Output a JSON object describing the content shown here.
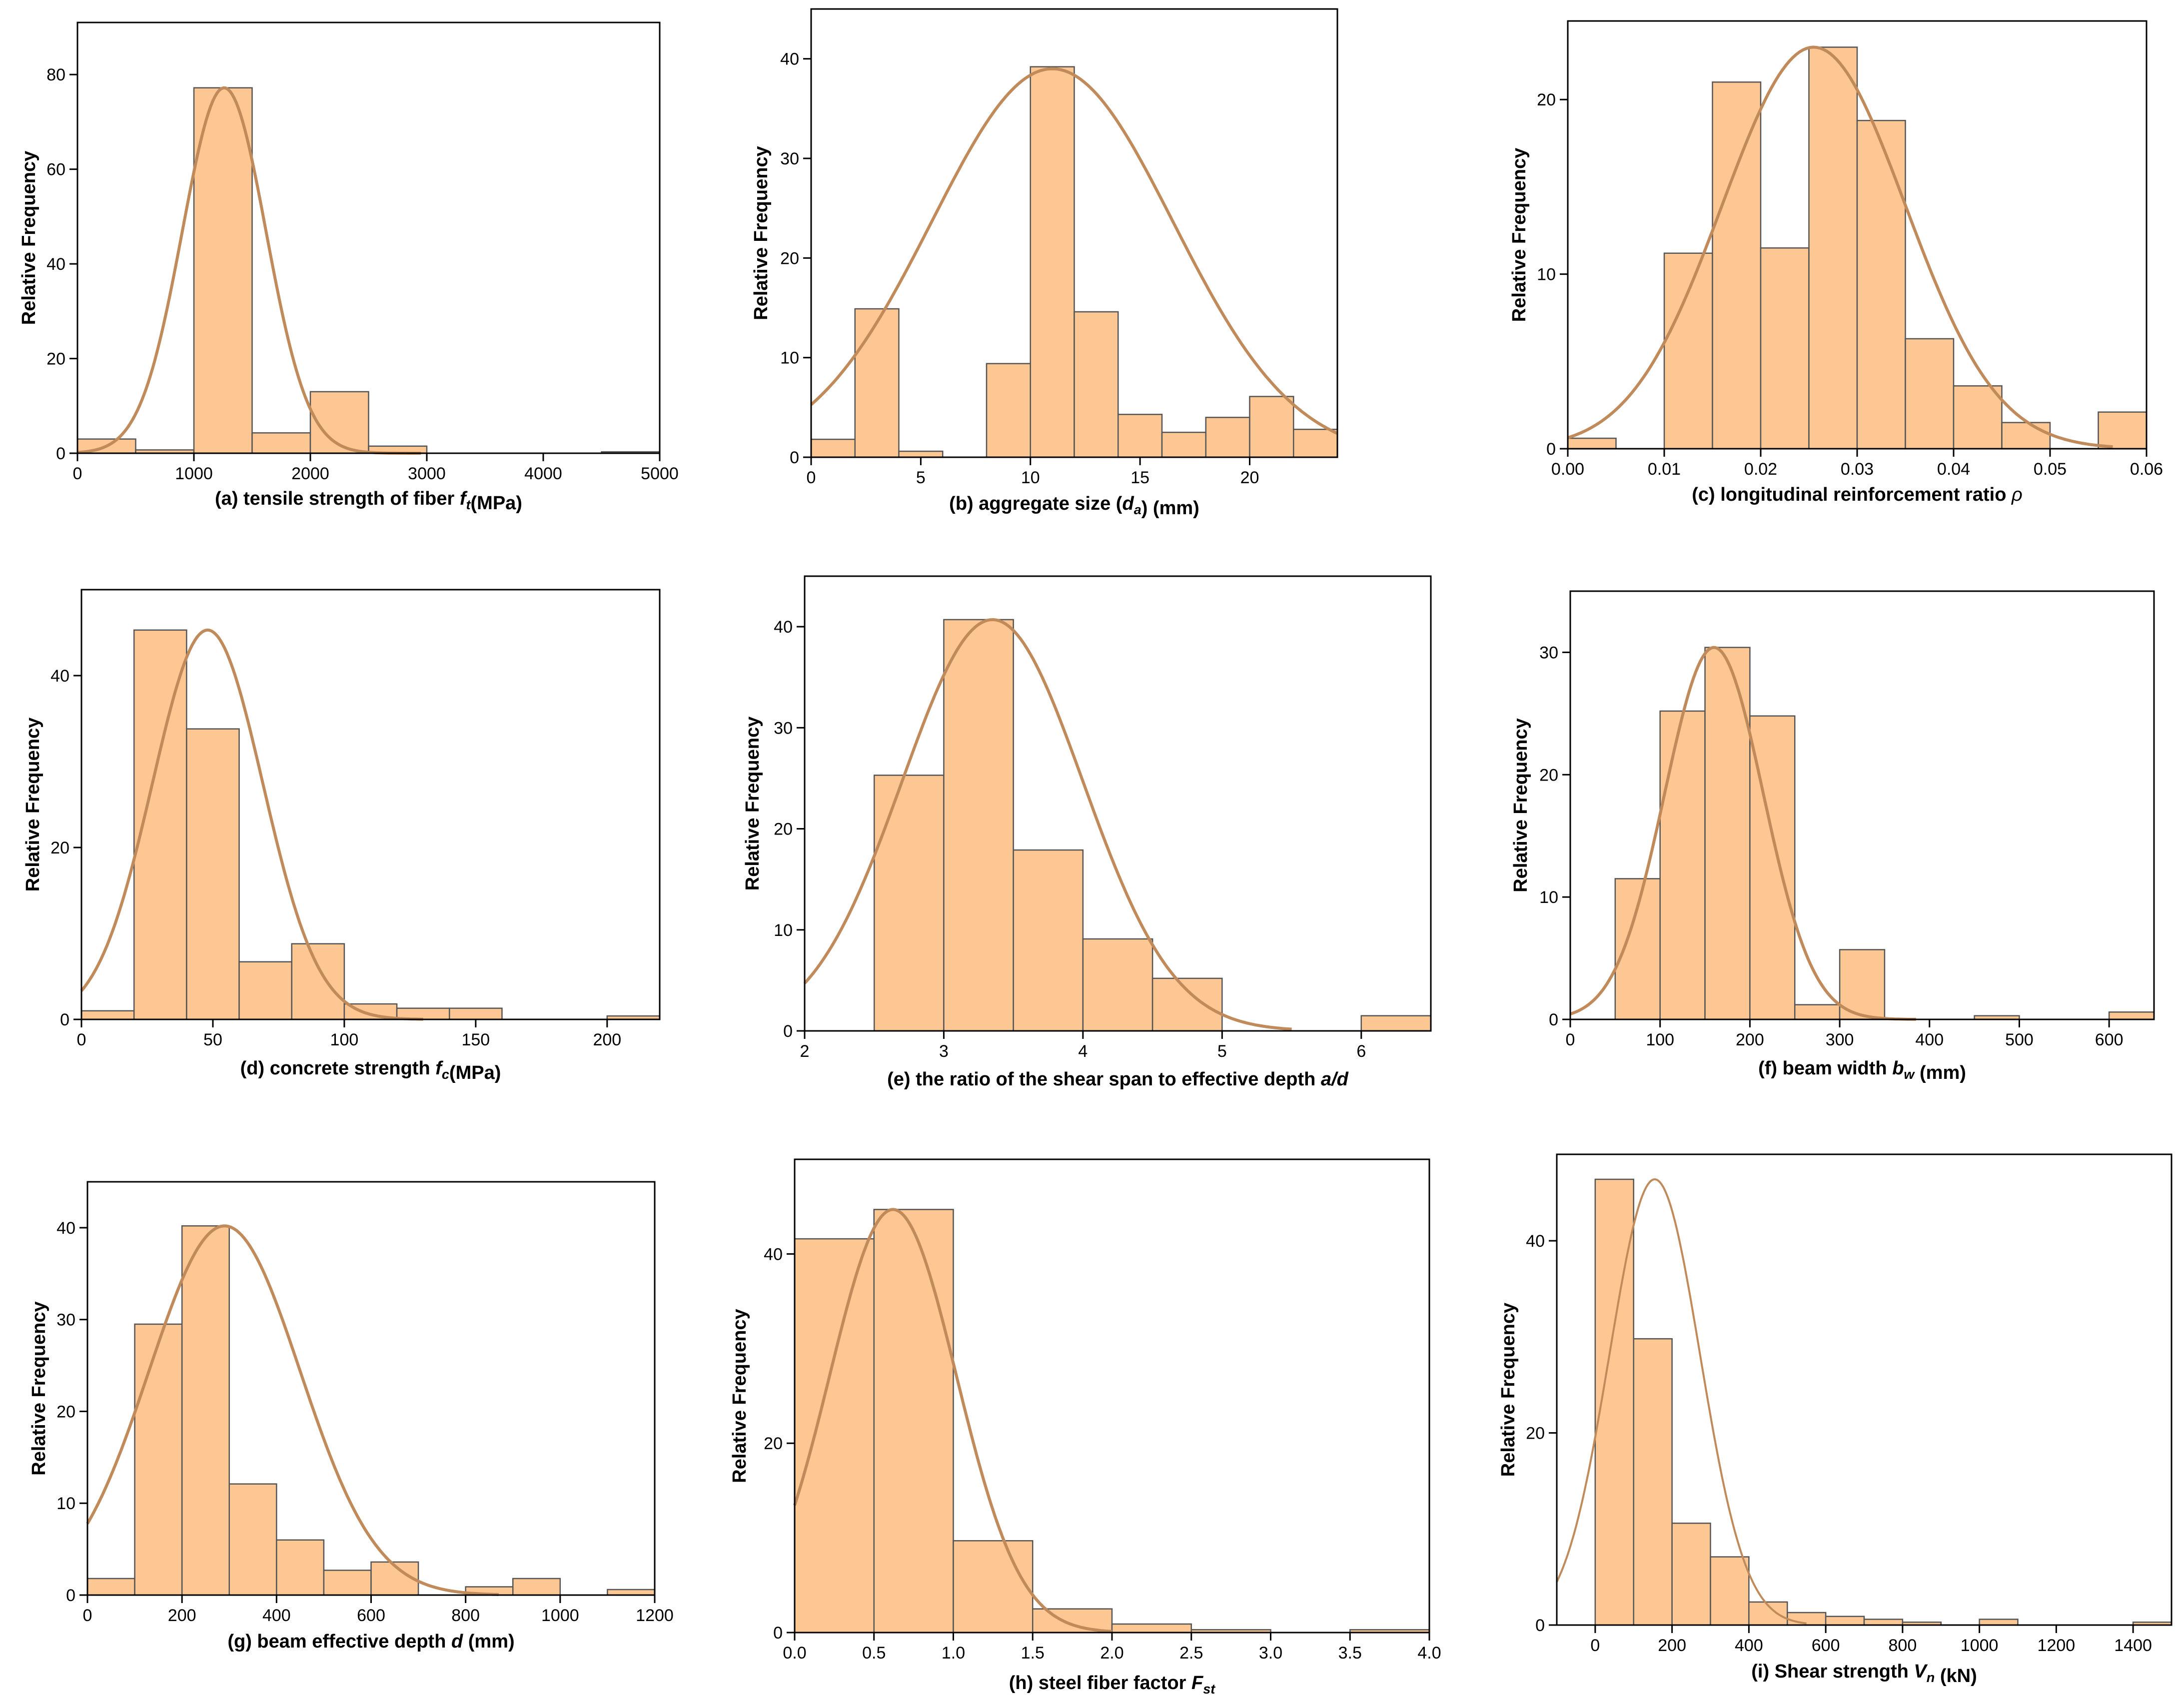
{
  "chart_data": [
    {
      "type": "bar",
      "id": "a",
      "caption": [
        {
          "t": "(a) tensile strength of fiber "
        },
        {
          "t": "f",
          "i": true
        },
        {
          "t": "t",
          "i": true,
          "sub": true
        },
        {
          "t": "(MPa)"
        }
      ],
      "ylabel": "Relative Frequency",
      "xlim": [
        0,
        5000
      ],
      "ylim": [
        0,
        91
      ],
      "xticks": [
        0,
        1000,
        2000,
        3000,
        4000,
        5000
      ],
      "xtick_labels": [
        "0",
        "1000",
        "2000",
        "3000",
        "4000",
        "5000"
      ],
      "yticks": [
        0,
        20,
        40,
        60,
        80
      ],
      "ytick_labels": [
        "0",
        "20",
        "40",
        "60",
        "80"
      ],
      "bins": [
        [
          0,
          500,
          3
        ],
        [
          500,
          1000,
          0.7
        ],
        [
          1000,
          1500,
          77.2
        ],
        [
          1500,
          2000,
          4.3
        ],
        [
          2000,
          2500,
          13
        ],
        [
          2500,
          3000,
          1.5
        ],
        [
          4500,
          5000,
          0.3
        ]
      ],
      "curve": {
        "mu": 1260,
        "sigma": 360,
        "peak": 77.2,
        "x0": 0,
        "x1": 2950
      }
    },
    {
      "type": "bar",
      "id": "b",
      "caption": [
        {
          "t": "(b) aggregate size ("
        },
        {
          "t": "d",
          "i": true
        },
        {
          "t": "a",
          "i": true,
          "sub": true
        },
        {
          "t": ") (mm)"
        }
      ],
      "ylabel": "Relative Frequency",
      "xlim": [
        0,
        24
      ],
      "ylim": [
        0,
        45
      ],
      "xticks": [
        0,
        5,
        10,
        15,
        20
      ],
      "xtick_labels": [
        "0",
        "5",
        "10",
        "15",
        "20"
      ],
      "yticks": [
        0,
        10,
        20,
        30,
        40
      ],
      "ytick_labels": [
        "0",
        "10",
        "20",
        "30",
        "40"
      ],
      "bins": [
        [
          0,
          2,
          1.8
        ],
        [
          2,
          4,
          14.9
        ],
        [
          4,
          6,
          0.6
        ],
        [
          8,
          10,
          9.4
        ],
        [
          10,
          12,
          39.2
        ],
        [
          12,
          14,
          14.6
        ],
        [
          14,
          16,
          4.3
        ],
        [
          16,
          18,
          2.5
        ],
        [
          18,
          20,
          4
        ],
        [
          20,
          22,
          6.1
        ],
        [
          22,
          24,
          2.8
        ]
      ],
      "curve": {
        "mu": 11,
        "sigma": 5.5,
        "peak": 39,
        "x0": 0,
        "x1": 24
      }
    },
    {
      "type": "bar",
      "id": "c",
      "caption": [
        {
          "t": "(c) longitudinal reinforcement ratio "
        },
        {
          "t": "ρ",
          "i": true,
          "plain": true
        }
      ],
      "ylabel": "Relative Frequency",
      "xlim": [
        0,
        0.06
      ],
      "ylim": [
        0,
        24.5
      ],
      "xticks": [
        0,
        0.01,
        0.02,
        0.03,
        0.04,
        0.05,
        0.06
      ],
      "xtick_labels": [
        "0.00",
        "0.01",
        "0.02",
        "0.03",
        "0.04",
        "0.05",
        "0.06"
      ],
      "yticks": [
        0,
        10,
        20
      ],
      "ytick_labels": [
        "0",
        "10",
        "20"
      ],
      "bins": [
        [
          0,
          0.005,
          0.6
        ],
        [
          0.01,
          0.015,
          11.2
        ],
        [
          0.015,
          0.02,
          21
        ],
        [
          0.02,
          0.025,
          11.5
        ],
        [
          0.025,
          0.03,
          23
        ],
        [
          0.03,
          0.035,
          18.8
        ],
        [
          0.035,
          0.04,
          6.3
        ],
        [
          0.04,
          0.045,
          3.6
        ],
        [
          0.045,
          0.05,
          1.5
        ],
        [
          0.055,
          0.06,
          2.1
        ]
      ],
      "curve": {
        "mu": 0.0255,
        "sigma": 0.0095,
        "peak": 23,
        "x0": 0,
        "x1": 0.0565
      }
    },
    {
      "type": "bar",
      "id": "d",
      "caption": [
        {
          "t": "(d) concrete strength "
        },
        {
          "t": "f",
          "i": true
        },
        {
          "t": "c",
          "i": true,
          "sub": true
        },
        {
          "t": "(MPa)"
        }
      ],
      "ylabel": "Relative Frequency",
      "xlim": [
        0,
        220
      ],
      "ylim": [
        0,
        50
      ],
      "xticks": [
        0,
        50,
        100,
        150,
        200
      ],
      "xtick_labels": [
        "0",
        "50",
        "100",
        "150",
        "200"
      ],
      "yticks": [
        0,
        20,
        40
      ],
      "ytick_labels": [
        "0",
        "20",
        "40"
      ],
      "bins": [
        [
          0,
          20,
          1
        ],
        [
          20,
          40,
          45.3
        ],
        [
          40,
          60,
          33.8
        ],
        [
          60,
          80,
          6.7
        ],
        [
          80,
          100,
          8.8
        ],
        [
          100,
          120,
          1.8
        ],
        [
          120,
          140,
          1.3
        ],
        [
          140,
          160,
          1.3
        ],
        [
          200,
          220,
          0.4
        ]
      ],
      "curve": {
        "mu": 48,
        "sigma": 21,
        "peak": 45.3,
        "x0": 0,
        "x1": 130
      }
    },
    {
      "type": "bar",
      "id": "e",
      "caption": [
        {
          "t": "(e) the ratio of the shear span to effective depth "
        },
        {
          "t": "a/d",
          "i": true
        }
      ],
      "ylabel": "Relative Frequency",
      "xlim": [
        2,
        6.5
      ],
      "ylim": [
        0,
        45
      ],
      "xticks": [
        2,
        3,
        4,
        5,
        6
      ],
      "xtick_labels": [
        "2",
        "3",
        "4",
        "5",
        "6"
      ],
      "yticks": [
        0,
        10,
        20,
        30,
        40
      ],
      "ytick_labels": [
        "0",
        "10",
        "20",
        "30",
        "40"
      ],
      "bins": [
        [
          2.5,
          3,
          25.3
        ],
        [
          3,
          3.5,
          40.7
        ],
        [
          3.5,
          4,
          17.9
        ],
        [
          4,
          4.5,
          9.1
        ],
        [
          4.5,
          5,
          5.2
        ],
        [
          6,
          6.5,
          1.5
        ]
      ],
      "curve": {
        "mu": 3.35,
        "sigma": 0.65,
        "peak": 40.7,
        "x0": 2,
        "x1": 5.5
      }
    },
    {
      "type": "bar",
      "id": "f",
      "caption": [
        {
          "t": "(f) beam width "
        },
        {
          "t": "b",
          "i": true
        },
        {
          "t": "w",
          "i": true,
          "sub": true
        },
        {
          "t": " (mm)"
        }
      ],
      "ylabel": "Relative Frequency",
      "xlim": [
        0,
        650
      ],
      "ylim": [
        0,
        35
      ],
      "xticks": [
        0,
        100,
        200,
        300,
        400,
        500,
        600
      ],
      "xtick_labels": [
        "0",
        "100",
        "200",
        "300",
        "400",
        "500",
        "600"
      ],
      "yticks": [
        0,
        10,
        20,
        30
      ],
      "ytick_labels": [
        "0",
        "10",
        "20",
        "30"
      ],
      "bins": [
        [
          50,
          100,
          11.5
        ],
        [
          100,
          150,
          25.2
        ],
        [
          150,
          200,
          30.4
        ],
        [
          200,
          250,
          24.8
        ],
        [
          250,
          300,
          1.2
        ],
        [
          300,
          350,
          5.7
        ],
        [
          450,
          500,
          0.3
        ],
        [
          600,
          650,
          0.6
        ]
      ],
      "curve": {
        "mu": 160,
        "sigma": 55,
        "peak": 30.4,
        "x0": 0,
        "x1": 385
      }
    },
    {
      "type": "bar",
      "id": "g",
      "caption": [
        {
          "t": "(g) beam effective depth "
        },
        {
          "t": "d",
          "i": true
        },
        {
          "t": " (mm)"
        }
      ],
      "ylabel": "Relative Frequency",
      "xlim": [
        0,
        1200
      ],
      "ylim": [
        0,
        45
      ],
      "xticks": [
        0,
        200,
        400,
        600,
        800,
        1000,
        1200
      ],
      "xtick_labels": [
        "0",
        "200",
        "400",
        "600",
        "800",
        "1000",
        "1200"
      ],
      "yticks": [
        0,
        10,
        20,
        30,
        40
      ],
      "ytick_labels": [
        "0",
        "10",
        "20",
        "30",
        "40"
      ],
      "bins": [
        [
          0,
          100,
          1.8
        ],
        [
          100,
          200,
          29.5
        ],
        [
          200,
          300,
          40.2
        ],
        [
          300,
          400,
          12.1
        ],
        [
          400,
          500,
          6
        ],
        [
          500,
          600,
          2.7
        ],
        [
          600,
          700,
          3.6
        ],
        [
          800,
          900,
          0.9
        ],
        [
          900,
          1000,
          1.8
        ],
        [
          1100,
          1200,
          0.6
        ]
      ],
      "curve": {
        "mu": 290,
        "sigma": 160,
        "peak": 40.2,
        "x0": 0,
        "x1": 870
      }
    },
    {
      "type": "bar",
      "id": "h",
      "caption": [
        {
          "t": "(h) steel fiber factor "
        },
        {
          "t": "F",
          "i": true
        },
        {
          "t": "st",
          "i": true,
          "sub": true
        }
      ],
      "ylabel": "Relative Frequency",
      "xlim": [
        0,
        4
      ],
      "ylim": [
        0,
        50
      ],
      "xticks": [
        0,
        0.5,
        1,
        1.5,
        2,
        2.5,
        3,
        3.5,
        4
      ],
      "xtick_labels": [
        "0.0",
        "0.5",
        "1.0",
        "1.5",
        "2.0",
        "2.5",
        "3.0",
        "3.5",
        "4.0"
      ],
      "yticks": [
        0,
        20,
        40
      ],
      "ytick_labels": [
        "0",
        "20",
        "40"
      ],
      "bins": [
        [
          0,
          0.5,
          41.6
        ],
        [
          0.5,
          1,
          44.7
        ],
        [
          1,
          1.5,
          9.7
        ],
        [
          1.5,
          2,
          2.5
        ],
        [
          2,
          2.5,
          0.9
        ],
        [
          2.5,
          3,
          0.3
        ],
        [
          3.5,
          4,
          0.3
        ]
      ],
      "curve": {
        "mu": 0.62,
        "sigma": 0.4,
        "peak": 44.7,
        "x0": 0,
        "x1": 2
      }
    },
    {
      "type": "bar",
      "id": "i",
      "caption": [
        {
          "t": "(i) Shear strength "
        },
        {
          "t": "V",
          "i": true
        },
        {
          "t": "n",
          "i": true,
          "sub": true
        },
        {
          "t": " (kN)"
        }
      ],
      "ylabel": "Relative Frequency",
      "ylabel_weight": "normal",
      "xlim": [
        -100,
        1500
      ],
      "ylim": [
        0,
        49
      ],
      "xticks": [
        0,
        200,
        400,
        600,
        800,
        1000,
        1200,
        1400
      ],
      "xtick_labels": [
        "0",
        "200",
        "400",
        "600",
        "800",
        "1000",
        "1200",
        "1400"
      ],
      "yticks": [
        0,
        20,
        40
      ],
      "ytick_labels": [
        "0",
        "20",
        "40"
      ],
      "bins": [
        [
          0,
          100,
          46.4
        ],
        [
          100,
          200,
          29.8
        ],
        [
          200,
          300,
          10.6
        ],
        [
          300,
          400,
          7.1
        ],
        [
          400,
          500,
          2.4
        ],
        [
          500,
          600,
          1.3
        ],
        [
          600,
          700,
          0.9
        ],
        [
          700,
          800,
          0.6
        ],
        [
          800,
          900,
          0.3
        ],
        [
          1000,
          1100,
          0.6
        ],
        [
          1400,
          1500,
          0.3
        ]
      ],
      "curve": {
        "mu": 155,
        "sigma": 118,
        "peak": 46.4,
        "x0": -100,
        "x1": 550
      }
    }
  ],
  "style": {
    "bar_fill": "#fdc794",
    "bar_stroke": "#555555",
    "curve": "#c08a5a",
    "axis": "#000000"
  }
}
